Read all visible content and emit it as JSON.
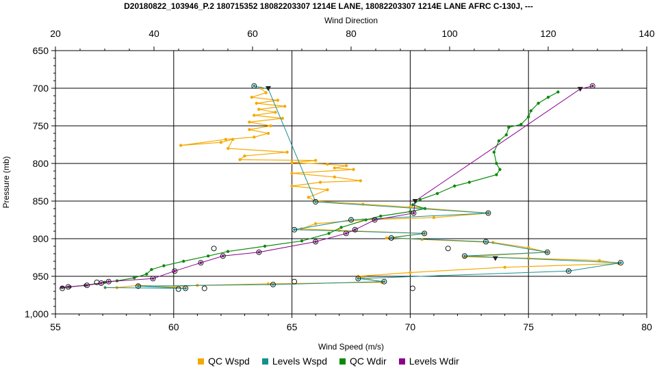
{
  "title": "D20180822_103946_P.2 180715352 18082203307 1214E LANE, 18082203307 1214E LANE AFRC C-130J, ---",
  "chart_data": {
    "type": "line",
    "xlabel": "Wind Speed (m/s)",
    "x2label": "Wind Direction",
    "ylabel": "Pressure (mb)",
    "xlim": [
      55,
      80
    ],
    "x2lim": [
      20,
      140
    ],
    "ylim": [
      1000,
      650
    ],
    "y_inverted": true,
    "grid": true,
    "legend_position": "bottom",
    "x_ticks": [
      "55",
      "60",
      "65",
      "70",
      "75",
      "80"
    ],
    "x2_ticks": [
      "20",
      "40",
      "60",
      "80",
      "100",
      "120",
      "140"
    ],
    "y_ticks": [
      "650",
      "700",
      "750",
      "800",
      "850",
      "900",
      "950",
      "1,000"
    ],
    "colors": {
      "qc_wspd": "#f5a800",
      "levels_wspd": "#168f8f",
      "qc_wdir": "#0a8a0a",
      "levels_wdir": "#8c008c"
    },
    "series": [
      {
        "name": "QC Wspd",
        "axis": "speed",
        "color": "#f5a800",
        "points": [
          [
            63.7,
            700
          ],
          [
            63.9,
            706
          ],
          [
            63.3,
            712
          ],
          [
            64.4,
            716
          ],
          [
            63.5,
            720
          ],
          [
            64.7,
            724
          ],
          [
            63.6,
            728
          ],
          [
            64.3,
            732
          ],
          [
            63.4,
            736
          ],
          [
            64.6,
            740
          ],
          [
            63.2,
            745
          ],
          [
            64.1,
            750
          ],
          [
            63.2,
            755
          ],
          [
            64.0,
            760
          ],
          [
            63.4,
            765
          ],
          [
            62.2,
            768
          ],
          [
            60.3,
            776
          ],
          [
            62.0,
            772
          ],
          [
            62.5,
            768
          ],
          [
            62.3,
            780
          ],
          [
            64.8,
            785
          ],
          [
            63.0,
            790
          ],
          [
            62.8,
            795
          ],
          [
            66.0,
            796
          ],
          [
            65.0,
            799
          ],
          [
            66.5,
            801
          ],
          [
            67.3,
            803
          ],
          [
            66.8,
            806
          ],
          [
            67.6,
            808
          ],
          [
            65.0,
            813
          ],
          [
            66.8,
            818
          ],
          [
            67.9,
            823
          ],
          [
            66.2,
            825
          ],
          [
            65.0,
            830
          ],
          [
            66.5,
            835
          ],
          [
            65.7,
            845
          ],
          [
            66.0,
            850
          ],
          [
            68.0,
            854
          ],
          [
            70.0,
            858
          ],
          [
            73.3,
            866
          ],
          [
            71.0,
            872
          ],
          [
            68.0,
            875
          ],
          [
            66.0,
            880
          ],
          [
            65.4,
            887
          ],
          [
            67.0,
            889
          ],
          [
            70.6,
            893
          ],
          [
            69.0,
            899
          ],
          [
            70.5,
            901
          ],
          [
            73.5,
            905
          ],
          [
            75.0,
            912
          ],
          [
            75.8,
            918
          ],
          [
            72.3,
            924
          ],
          [
            75.0,
            926
          ],
          [
            78.0,
            929
          ],
          [
            78.8,
            933
          ],
          [
            74.0,
            938
          ],
          [
            70.0,
            945
          ],
          [
            67.8,
            950
          ],
          [
            68.8,
            958
          ],
          [
            64.0,
            960
          ],
          [
            61.0,
            962
          ],
          [
            60.0,
            964
          ],
          [
            58.5,
            962
          ],
          [
            57.6,
            965
          ],
          [
            57.1,
            965
          ]
        ]
      },
      {
        "name": "Levels Wspd",
        "axis": "speed",
        "color": "#168f8f",
        "points": [
          [
            63.4,
            697
          ],
          [
            64.0,
            701
          ],
          [
            66.0,
            851
          ],
          [
            73.3,
            866
          ],
          [
            67.5,
            875
          ],
          [
            65.1,
            888
          ],
          [
            70.6,
            893
          ],
          [
            69.2,
            899
          ],
          [
            73.2,
            904
          ],
          [
            75.8,
            918
          ],
          [
            72.3,
            923
          ],
          [
            78.9,
            932
          ],
          [
            76.7,
            943
          ],
          [
            67.8,
            953
          ],
          [
            68.9,
            957
          ],
          [
            64.2,
            961
          ],
          [
            58.5,
            963
          ],
          [
            60.5,
            966
          ],
          [
            57.1,
            965
          ]
        ],
        "open_markers": [
          [
            63.4,
            697
          ],
          [
            66.0,
            851
          ],
          [
            73.3,
            866
          ],
          [
            67.5,
            875
          ],
          [
            65.1,
            888
          ],
          [
            70.6,
            893
          ],
          [
            69.2,
            899
          ],
          [
            73.2,
            904
          ],
          [
            75.8,
            918
          ],
          [
            72.3,
            923
          ],
          [
            78.9,
            932
          ],
          [
            76.7,
            943
          ],
          [
            67.8,
            953
          ],
          [
            68.9,
            957
          ],
          [
            64.2,
            961
          ],
          [
            65.1,
            957
          ],
          [
            61.7,
            913
          ],
          [
            71.6,
            913
          ],
          [
            60.2,
            967
          ],
          [
            60.5,
            966
          ],
          [
            61.3,
            966
          ],
          [
            70.1,
            966
          ],
          [
            58.5,
            963
          ]
        ],
        "triangle_markers": [
          [
            64.0,
            700
          ],
          [
            73.6,
            926
          ]
        ]
      },
      {
        "name": "QC Wdir",
        "axis": "direction",
        "color": "#0a8a0a",
        "points": [
          [
            122.0,
            705
          ],
          [
            120.0,
            712
          ],
          [
            118.0,
            720
          ],
          [
            116.5,
            730
          ],
          [
            116.0,
            738
          ],
          [
            114.5,
            748
          ],
          [
            112.0,
            752
          ],
          [
            111.5,
            762
          ],
          [
            110.0,
            770
          ],
          [
            109.0,
            785
          ],
          [
            109.5,
            800
          ],
          [
            110.2,
            808
          ],
          [
            109.5,
            815
          ],
          [
            104.0,
            825
          ],
          [
            101.0,
            830
          ],
          [
            97.5,
            840
          ],
          [
            94.0,
            848
          ],
          [
            92.5,
            855
          ],
          [
            95.0,
            860
          ],
          [
            92.0,
            864
          ],
          [
            86.0,
            870
          ],
          [
            83.0,
            875
          ],
          [
            78.0,
            885
          ],
          [
            75.5,
            893
          ],
          [
            70.0,
            903
          ],
          [
            62.5,
            910
          ],
          [
            55.0,
            917
          ],
          [
            51.0,
            923
          ],
          [
            46.0,
            930
          ],
          [
            42.0,
            936
          ],
          [
            39.5,
            941
          ],
          [
            38.5,
            947
          ],
          [
            36.0,
            952
          ],
          [
            32.5,
            956
          ],
          [
            30.0,
            958
          ],
          [
            26.0,
            962
          ],
          [
            23.0,
            964
          ],
          [
            21.5,
            965
          ]
        ]
      },
      {
        "name": "Levels Wdir",
        "axis": "direction",
        "color": "#8c008c",
        "points": [
          [
            129.0,
            697
          ],
          [
            126.5,
            701
          ],
          [
            93.0,
            850
          ],
          [
            92.7,
            866
          ],
          [
            84.8,
            875
          ],
          [
            80.8,
            888
          ],
          [
            79.0,
            893
          ],
          [
            72.8,
            904
          ],
          [
            61.3,
            918
          ],
          [
            54.0,
            923
          ],
          [
            49.5,
            932
          ],
          [
            44.2,
            943
          ],
          [
            39.8,
            953
          ],
          [
            30.8,
            957
          ],
          [
            29.3,
            959
          ],
          [
            26.4,
            962
          ],
          [
            22.6,
            964
          ],
          [
            21.2,
            965
          ]
        ],
        "open_markers": [
          [
            129.0,
            697
          ],
          [
            92.7,
            866
          ],
          [
            84.8,
            875
          ],
          [
            80.8,
            888
          ],
          [
            79.0,
            893
          ],
          [
            72.8,
            904
          ],
          [
            61.3,
            918
          ],
          [
            54.0,
            923
          ],
          [
            49.5,
            932
          ],
          [
            44.2,
            943
          ],
          [
            39.8,
            953
          ],
          [
            30.8,
            957
          ],
          [
            29.3,
            959
          ],
          [
            28.4,
            958
          ],
          [
            26.4,
            962
          ],
          [
            22.6,
            964
          ],
          [
            21.4,
            966
          ]
        ],
        "triangle_markers": [
          [
            126.5,
            701
          ],
          [
            93.0,
            850
          ]
        ]
      }
    ]
  }
}
